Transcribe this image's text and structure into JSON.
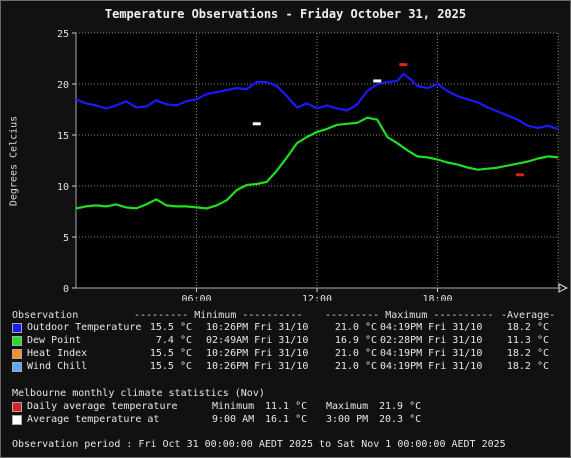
{
  "title": "Temperature Observations - Friday October 31, 2025",
  "colors": {
    "outdoor_temp": "#1a1aff",
    "dew_point": "#22dd22",
    "heat_index": "#ff8c2a",
    "wind_chill": "#5aaaf0",
    "daily_avg": "#e02020",
    "avg_at": "#ffffff",
    "grid": "#7a9a3a"
  },
  "chart_data": {
    "type": "line",
    "ylabel": "Degrees Celcius",
    "xlabel": "",
    "ylim": [
      0,
      25
    ],
    "yticks": [
      0,
      5,
      10,
      15,
      20,
      25
    ],
    "xlim_hours": [
      0,
      24
    ],
    "xticks": [
      {
        "hour": 6,
        "label": "06:00"
      },
      {
        "hour": 12,
        "label": "12:00"
      },
      {
        "hour": 18,
        "label": "18:00"
      }
    ],
    "grid": true,
    "series": [
      {
        "name": "Outdoor Temperature",
        "color": "#1a1aff",
        "points": [
          [
            0,
            18.5
          ],
          [
            0.5,
            18.1
          ],
          [
            1,
            17.9
          ],
          [
            1.5,
            17.6
          ],
          [
            2,
            17.9
          ],
          [
            2.5,
            18.3
          ],
          [
            3,
            17.7
          ],
          [
            3.5,
            17.8
          ],
          [
            4,
            18.4
          ],
          [
            4.5,
            18.0
          ],
          [
            5,
            17.9
          ],
          [
            5.5,
            18.3
          ],
          [
            6,
            18.5
          ],
          [
            6.5,
            19.0
          ],
          [
            7,
            19.2
          ],
          [
            7.5,
            19.4
          ],
          [
            8,
            19.6
          ],
          [
            8.5,
            19.5
          ],
          [
            9,
            20.2
          ],
          [
            9.5,
            20.2
          ],
          [
            10,
            19.8
          ],
          [
            10.5,
            18.8
          ],
          [
            11,
            17.7
          ],
          [
            11.5,
            18.1
          ],
          [
            12,
            17.6
          ],
          [
            12.5,
            17.9
          ],
          [
            13,
            17.6
          ],
          [
            13.5,
            17.4
          ],
          [
            14,
            18.0
          ],
          [
            14.5,
            19.3
          ],
          [
            15,
            20.0
          ],
          [
            15.5,
            20.2
          ],
          [
            16,
            20.3
          ],
          [
            16.3,
            21.0
          ],
          [
            16.7,
            20.4
          ],
          [
            17,
            19.8
          ],
          [
            17.5,
            19.6
          ],
          [
            18,
            20.0
          ],
          [
            18.5,
            19.3
          ],
          [
            19,
            18.8
          ],
          [
            19.5,
            18.5
          ],
          [
            20,
            18.2
          ],
          [
            20.5,
            17.7
          ],
          [
            21,
            17.3
          ],
          [
            21.5,
            16.9
          ],
          [
            22,
            16.5
          ],
          [
            22.5,
            15.9
          ],
          [
            23,
            15.7
          ],
          [
            23.5,
            15.9
          ],
          [
            24,
            15.6
          ]
        ]
      },
      {
        "name": "Dew Point",
        "color": "#22dd22",
        "points": [
          [
            0,
            7.8
          ],
          [
            0.5,
            8.0
          ],
          [
            1,
            8.1
          ],
          [
            1.5,
            8.0
          ],
          [
            2,
            8.2
          ],
          [
            2.5,
            7.9
          ],
          [
            3,
            7.8
          ],
          [
            3.5,
            8.2
          ],
          [
            4,
            8.7
          ],
          [
            4.5,
            8.1
          ],
          [
            5,
            8.0
          ],
          [
            5.5,
            8.0
          ],
          [
            6,
            7.9
          ],
          [
            6.5,
            7.8
          ],
          [
            7,
            8.1
          ],
          [
            7.5,
            8.6
          ],
          [
            8,
            9.6
          ],
          [
            8.5,
            10.1
          ],
          [
            9,
            10.2
          ],
          [
            9.5,
            10.4
          ],
          [
            10,
            11.5
          ],
          [
            10.5,
            12.8
          ],
          [
            11,
            14.2
          ],
          [
            11.5,
            14.8
          ],
          [
            12,
            15.3
          ],
          [
            12.5,
            15.6
          ],
          [
            13,
            16.0
          ],
          [
            13.5,
            16.1
          ],
          [
            14,
            16.2
          ],
          [
            14.5,
            16.7
          ],
          [
            15,
            16.5
          ],
          [
            15.5,
            14.8
          ],
          [
            16,
            14.2
          ],
          [
            16.5,
            13.5
          ],
          [
            17,
            12.9
          ],
          [
            17.5,
            12.8
          ],
          [
            18,
            12.6
          ],
          [
            18.5,
            12.3
          ],
          [
            19,
            12.1
          ],
          [
            19.5,
            11.8
          ],
          [
            20,
            11.6
          ],
          [
            20.5,
            11.7
          ],
          [
            21,
            11.8
          ],
          [
            21.5,
            12.0
          ],
          [
            22,
            12.2
          ],
          [
            22.5,
            12.4
          ],
          [
            23,
            12.7
          ],
          [
            23.5,
            12.9
          ],
          [
            24,
            12.8
          ]
        ]
      }
    ],
    "markers": [
      {
        "name": "Daily average temperature",
        "color": "#e02020",
        "type": "dash",
        "points": [
          [
            16.3,
            21.9
          ],
          [
            22.1,
            11.1
          ]
        ]
      },
      {
        "name": "Average temperature at",
        "color": "#ffffff",
        "type": "dash",
        "points": [
          [
            9.0,
            16.1
          ],
          [
            15.0,
            20.3
          ]
        ]
      }
    ]
  },
  "legend": {
    "header": {
      "observation": "Observation",
      "minimum": "--------- Minimum ----------",
      "maximum": "--------- Maximum ----------",
      "average": "-Average-"
    },
    "rows": [
      {
        "name": "Outdoor Temperature",
        "min": "15.5 °C",
        "min_time": "10:26PM Fri 31/10",
        "max": "21.0 °C",
        "max_time": "04:19PM Fri 31/10",
        "avg": "18.2 °C"
      },
      {
        "name": "Dew Point",
        "min": "7.4 °C",
        "min_time": "02:49AM Fri 31/10",
        "max": "16.9 °C",
        "max_time": "02:28PM Fri 31/10",
        "avg": "11.3 °C"
      },
      {
        "name": "Heat Index",
        "min": "15.5 °C",
        "min_time": "10:26PM Fri 31/10",
        "max": "21.0 °C",
        "max_time": "04:19PM Fri 31/10",
        "avg": "18.2 °C"
      },
      {
        "name": "Wind Chill",
        "min": "15.5 °C",
        "min_time": "10:26PM Fri 31/10",
        "max": "21.0 °C",
        "max_time": "04:19PM Fri 31/10",
        "avg": "18.2 °C"
      }
    ]
  },
  "climate": {
    "heading": "Melbourne monthly climate statistics (Nov)",
    "daily_avg_label": "Daily average temperature",
    "min_label": "Minimum",
    "min_value": "11.1 °C",
    "max_label": "Maximum",
    "max_value": "21.9 °C",
    "avg_at_label": "Average temperature at",
    "avg_at_time1": "9:00 AM",
    "avg_at_value1": "16.1 °C",
    "avg_at_time2": "3:00 PM",
    "avg_at_value2": "20.3 °C"
  },
  "footer": "Observation period : Fri Oct 31 00:00:00 AEDT 2025 to Sat Nov 1 00:00:00 AEDT 2025"
}
